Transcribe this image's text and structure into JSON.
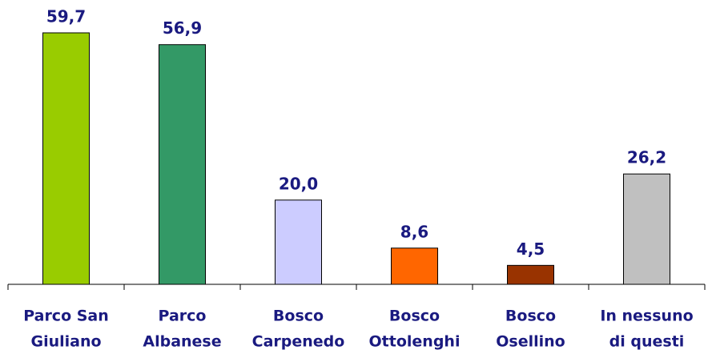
{
  "chart_data": {
    "type": "bar",
    "categories": [
      [
        "Parco San",
        "Giuliano"
      ],
      [
        "Parco",
        "Albanese"
      ],
      [
        "Bosco",
        "Carpenedo"
      ],
      [
        "Bosco",
        "Ottolenghi"
      ],
      [
        "Bosco",
        "Osellino"
      ],
      [
        "In nessuno",
        "di questi"
      ]
    ],
    "values": [
      59.7,
      56.9,
      20.0,
      8.6,
      4.5,
      26.2
    ],
    "value_labels": [
      "59,7",
      "56,9",
      "20,0",
      "8,6",
      "4,5",
      "26,2"
    ],
    "colors": [
      "#99cc00",
      "#339966",
      "#ccccff",
      "#ff6600",
      "#993300",
      "#c0c0c0"
    ]
  }
}
